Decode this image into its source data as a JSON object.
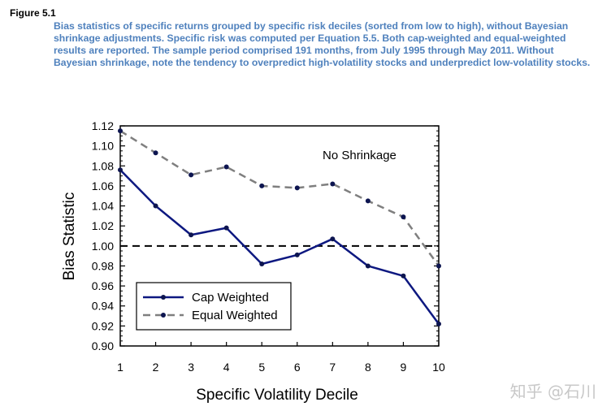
{
  "figure": {
    "label": "Figure 5.1",
    "caption": "Bias statistics of specific returns grouped by specific risk deciles (sorted from low to high), without Bayesian shrinkage adjustments. Specific risk was computed per Equation 5.5. Both cap-weighted and equal-weighted results are reported. The sample period comprised 191 months, from July 1995 through May 2011. Without Bayesian shrinkage, note the tendency to overpredict high-volatility stocks and underpredict low-volatility stocks."
  },
  "watermark": "知乎 @石川",
  "colors": {
    "cap_weighted": "#0d1880",
    "equal_weighted": "#7f7f7f",
    "marker": "#0d1550",
    "caption_text": "#4f81bd"
  },
  "chart_data": {
    "type": "line",
    "title": "",
    "xlabel": "Specific Volatility Decile",
    "ylabel": "Bias Statistic",
    "x": [
      1,
      2,
      3,
      4,
      5,
      6,
      7,
      8,
      9,
      10
    ],
    "xlim": [
      1,
      10
    ],
    "ylim": [
      0.9,
      1.12
    ],
    "yticks": [
      0.9,
      0.92,
      0.94,
      0.96,
      0.98,
      1.0,
      1.02,
      1.04,
      1.06,
      1.08,
      1.1,
      1.12
    ],
    "ytick_labels": [
      "0.90",
      "0.92",
      "0.94",
      "0.96",
      "0.98",
      "1.00",
      "1.02",
      "1.04",
      "1.06",
      "1.08",
      "1.10",
      "1.12"
    ],
    "xtick_labels": [
      "1",
      "2",
      "3",
      "4",
      "5",
      "6",
      "7",
      "8",
      "9",
      "10"
    ],
    "reference_line": 1.0,
    "annotation": "No Shrinkage",
    "legend_position": "bottom-left",
    "series": [
      {
        "name": "Cap Weighted",
        "style": "solid",
        "values": [
          1.076,
          1.04,
          1.011,
          1.018,
          0.982,
          0.991,
          1.007,
          0.98,
          0.97,
          0.922
        ]
      },
      {
        "name": "Equal Weighted",
        "style": "dashed",
        "values": [
          1.115,
          1.093,
          1.071,
          1.079,
          1.06,
          1.058,
          1.062,
          1.045,
          1.029,
          0.98
        ]
      }
    ]
  }
}
